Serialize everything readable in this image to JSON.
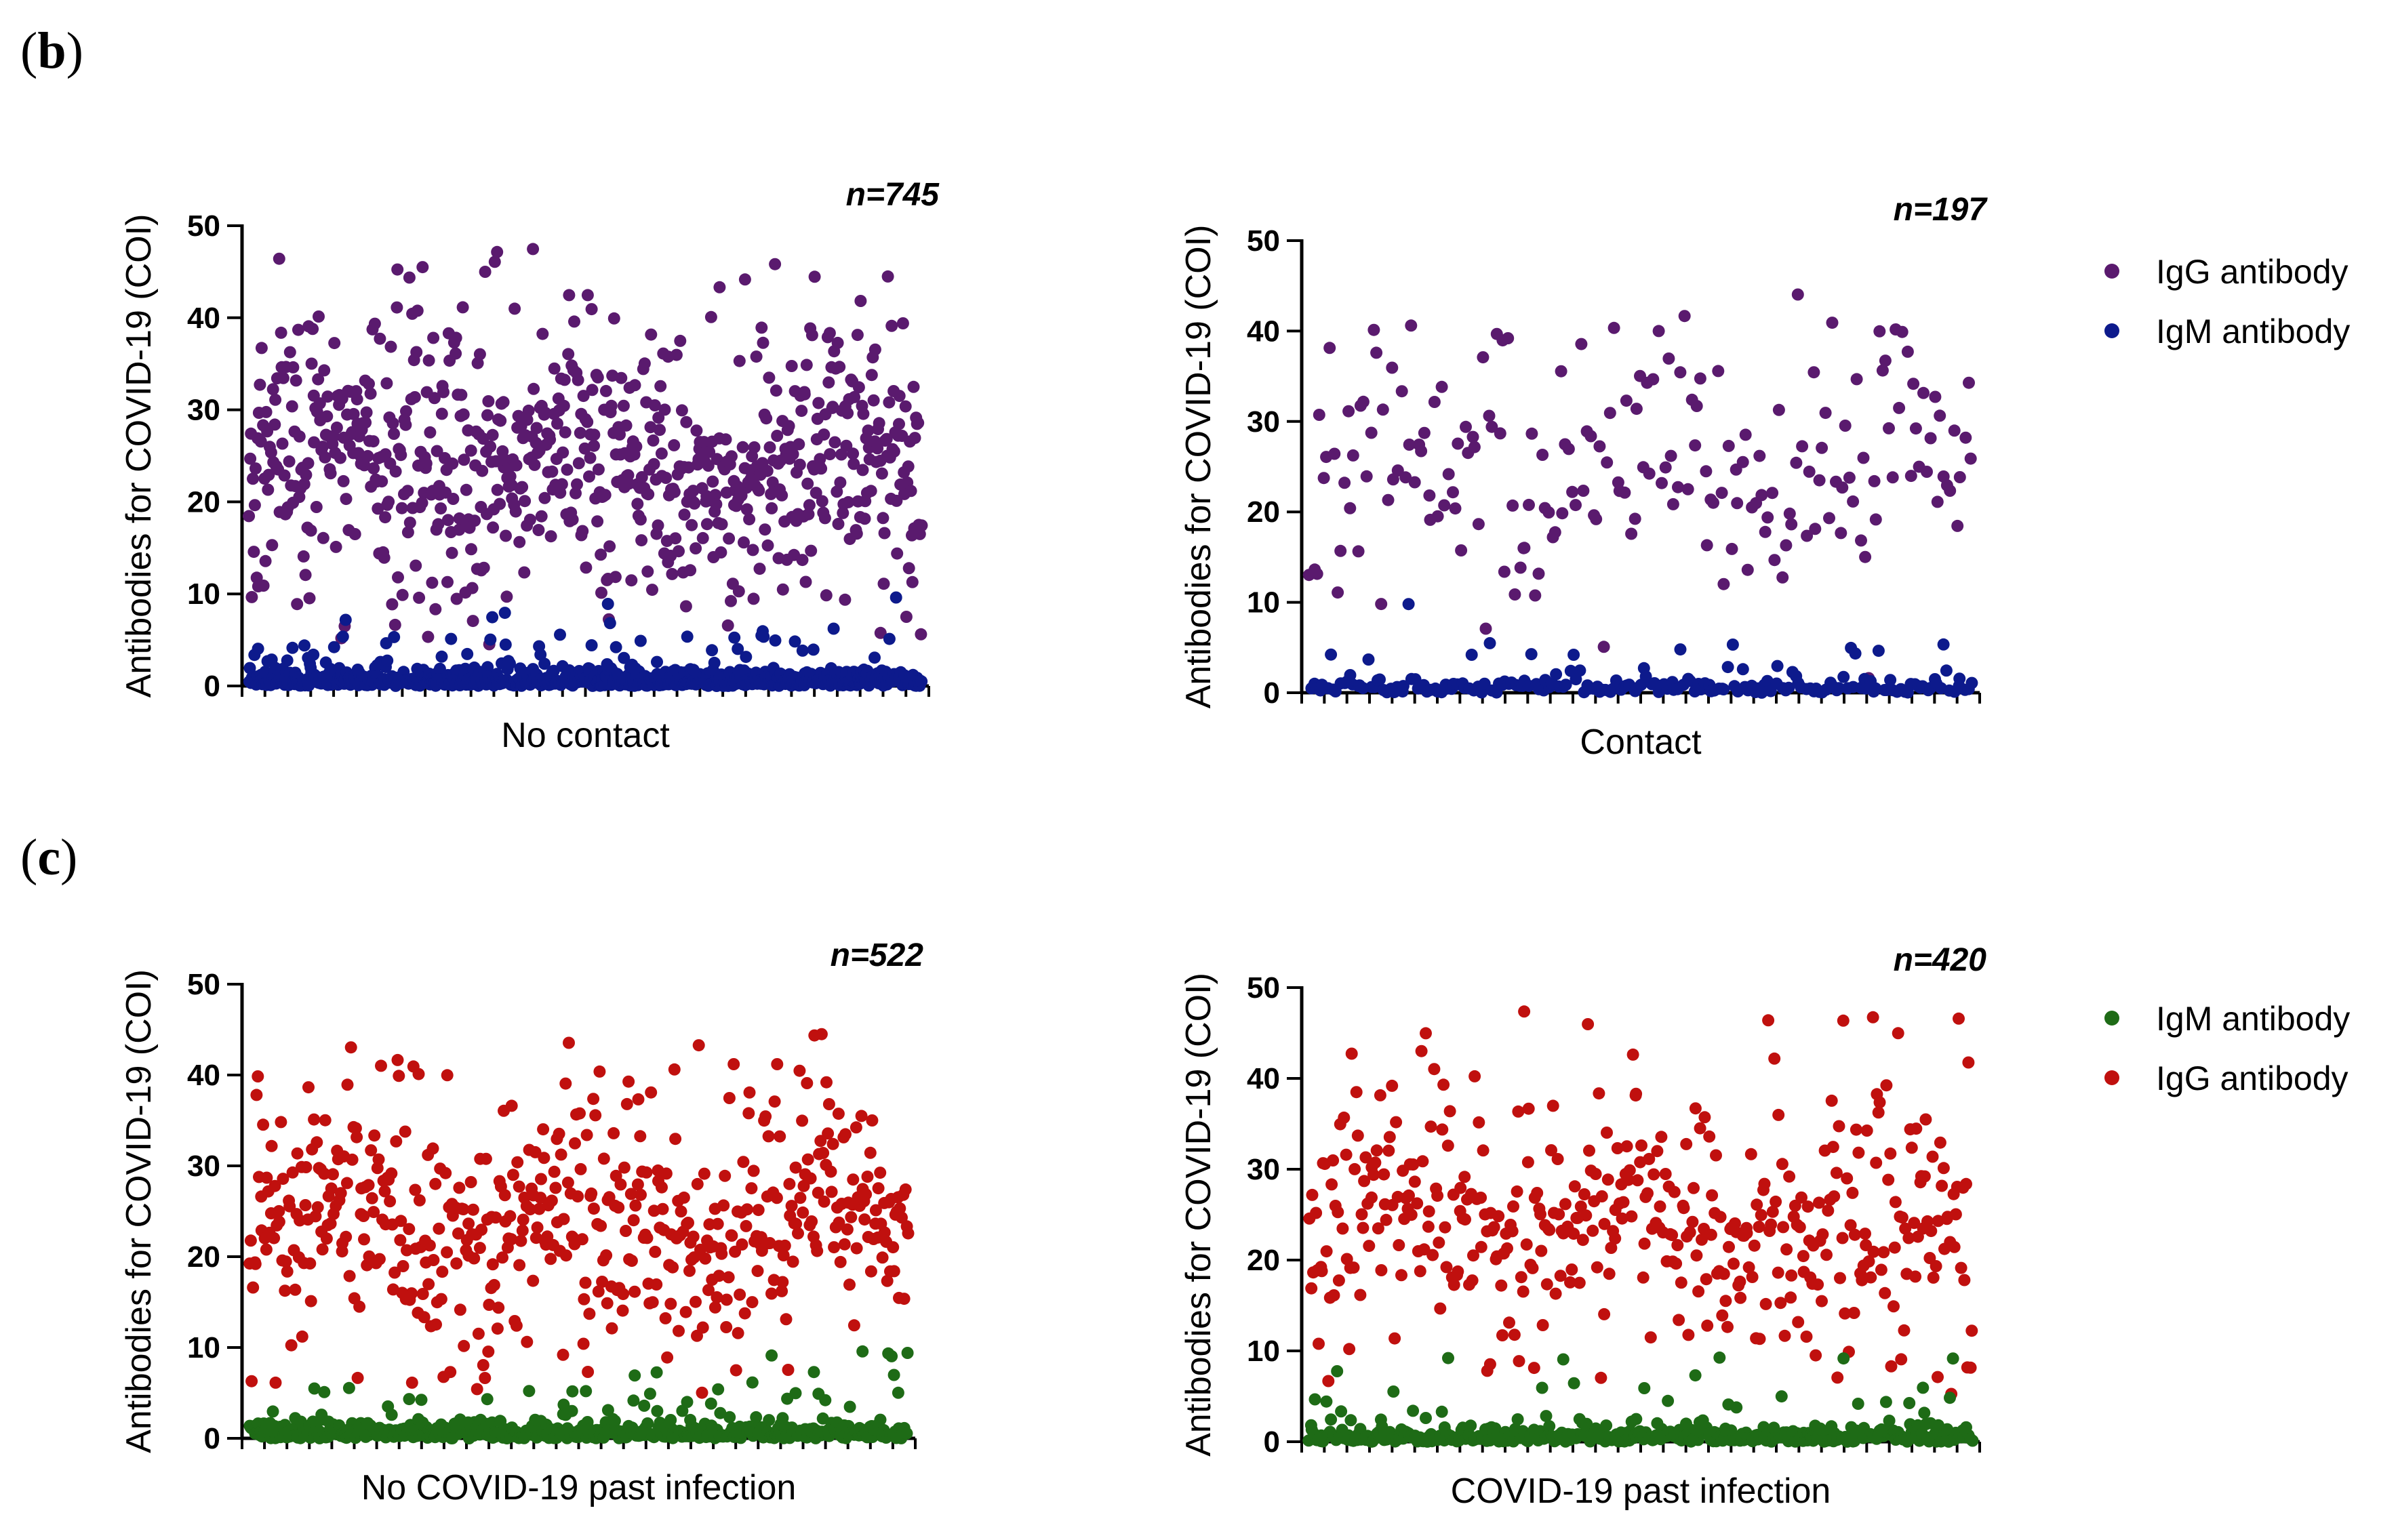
{
  "panel_labels": {
    "b": {
      "open": "(",
      "letter": "b",
      "close": ")"
    },
    "c": {
      "open": "(",
      "letter": "c",
      "close": ")"
    }
  },
  "legends": {
    "b": [
      {
        "label": "IgG antibody",
        "color": "#5a1a6e"
      },
      {
        "label": "IgM antibody",
        "color": "#0d1a8c"
      }
    ],
    "c": [
      {
        "label": "IgM antibody",
        "color": "#1e6b16"
      },
      {
        "label": "IgG antibody",
        "color": "#c0100e"
      }
    ]
  },
  "chart_data": [
    {
      "id": "b-left",
      "type": "scatter",
      "title": "",
      "xlabel": "No contact",
      "ylabel": "Antibodies for COVID-19 (COI)",
      "n_label": "n=745",
      "n": 745,
      "ylim": [
        0,
        50
      ],
      "yticks": [
        0,
        10,
        20,
        30,
        40,
        50
      ],
      "xticks_count": 30,
      "series": [
        {
          "name": "IgG antibody",
          "color": "#5a1a6e",
          "count": 745,
          "typical_range": [
            15,
            35
          ],
          "max": 47.5
        },
        {
          "name": "IgM antibody",
          "color": "#0d1a8c",
          "count": 745,
          "typical_range": [
            0,
            3
          ],
          "max": 10.5
        }
      ],
      "draw_order": [
        "IgG antibody",
        "IgM antibody"
      ]
    },
    {
      "id": "b-right",
      "type": "scatter",
      "title": "",
      "xlabel": "Contact",
      "ylabel": "Antibodies for COVID-19 (COI)",
      "n_label": "n=197",
      "n": 197,
      "ylim": [
        0,
        50
      ],
      "yticks": [
        0,
        10,
        20,
        30,
        40,
        50
      ],
      "xticks_count": 30,
      "series": [
        {
          "name": "IgG antibody",
          "color": "#5a1a6e",
          "count": 197,
          "typical_range": [
            15,
            35
          ],
          "max": 44.5
        },
        {
          "name": "IgM antibody",
          "color": "#0d1a8c",
          "count": 197,
          "typical_range": [
            0,
            3
          ],
          "max": 10
        }
      ],
      "draw_order": [
        "IgG antibody",
        "IgM antibody"
      ]
    },
    {
      "id": "c-left",
      "type": "scatter",
      "title": "",
      "xlabel": "No COVID-19 past infection",
      "ylabel": "Antibodies for COVID-19 (COI)",
      "n_label": "n=522",
      "n": 522,
      "ylim": [
        0,
        50
      ],
      "yticks": [
        0,
        10,
        20,
        30,
        40,
        50
      ],
      "xticks_count": 30,
      "series": [
        {
          "name": "IgM antibody",
          "color": "#1e6b16",
          "count": 522,
          "typical_range": [
            0,
            3
          ],
          "max": 10.5
        },
        {
          "name": "IgG antibody",
          "color": "#c0100e",
          "count": 522,
          "typical_range": [
            15,
            35
          ],
          "max": 44.5
        }
      ],
      "draw_order": [
        "IgG antibody",
        "IgM antibody"
      ]
    },
    {
      "id": "c-right",
      "type": "scatter",
      "title": "",
      "xlabel": "COVID-19 past infection",
      "ylabel": "Antibodies for COVID-19 (COI)",
      "n_label": "n=420",
      "n": 420,
      "ylim": [
        0,
        50
      ],
      "yticks": [
        0,
        10,
        20,
        30,
        40,
        50
      ],
      "xticks_count": 30,
      "series": [
        {
          "name": "IgM antibody",
          "color": "#1e6b16",
          "count": 420,
          "typical_range": [
            0,
            3
          ],
          "max": 10
        },
        {
          "name": "IgG antibody",
          "color": "#c0100e",
          "count": 420,
          "typical_range": [
            15,
            35
          ],
          "max": 47.5
        }
      ],
      "draw_order": [
        "IgG antibody",
        "IgM antibody"
      ]
    }
  ]
}
